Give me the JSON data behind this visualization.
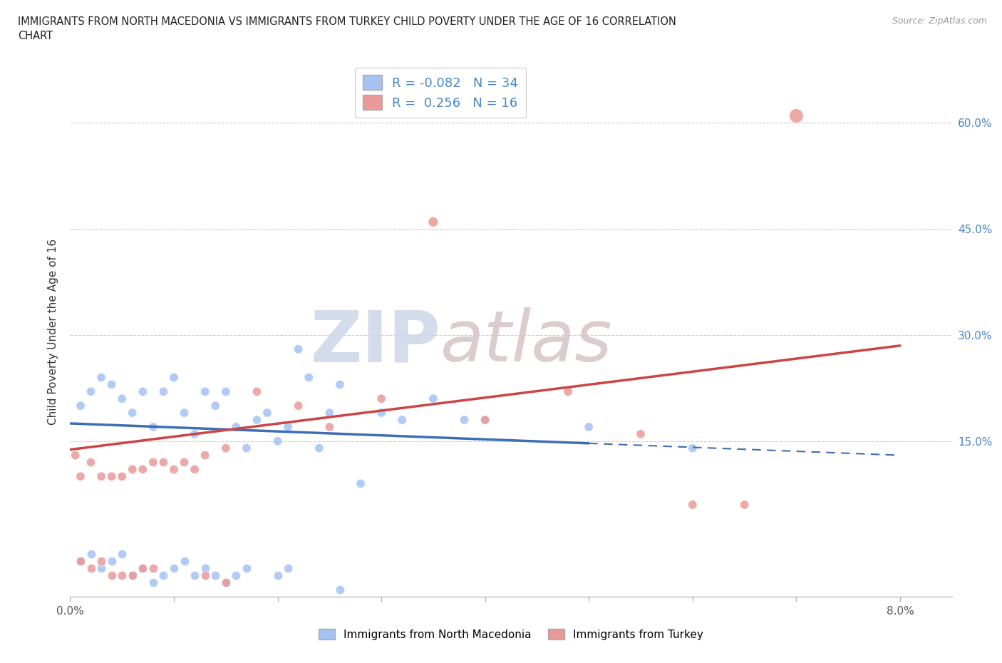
{
  "title": "IMMIGRANTS FROM NORTH MACEDONIA VS IMMIGRANTS FROM TURKEY CHILD POVERTY UNDER THE AGE OF 16 CORRELATION\nCHART",
  "source": "Source: ZipAtlas.com",
  "ylabel": "Child Poverty Under the Age of 16",
  "xlim": [
    0.0,
    0.085
  ],
  "ylim": [
    -0.07,
    0.68
  ],
  "x_ticks": [
    0.0,
    0.01,
    0.02,
    0.03,
    0.04,
    0.05,
    0.06,
    0.07,
    0.08
  ],
  "x_tick_labels_show": {
    "0.0": "0.0%",
    "0.08": "8.0%"
  },
  "y_tick_labels": [
    "15.0%",
    "30.0%",
    "45.0%",
    "60.0%"
  ],
  "y_tick_values": [
    0.15,
    0.3,
    0.45,
    0.6
  ],
  "gridline_values": [
    0.15,
    0.3,
    0.45,
    0.6
  ],
  "blue_color": "#a4c2f4",
  "pink_color": "#ea9999",
  "blue_line_color": "#3d6eb4",
  "pink_line_color": "#cc4444",
  "blue_line_solid_end": 0.05,
  "r_blue": -0.082,
  "n_blue": 34,
  "r_pink": 0.256,
  "n_pink": 16,
  "watermark_zip": "ZIP",
  "watermark_atlas": "atlas",
  "legend_label_blue": "Immigrants from North Macedonia",
  "legend_label_pink": "Immigrants from Turkey",
  "nm_x": [
    0.001,
    0.002,
    0.003,
    0.004,
    0.005,
    0.006,
    0.007,
    0.008,
    0.009,
    0.01,
    0.011,
    0.012,
    0.013,
    0.014,
    0.015,
    0.016,
    0.017,
    0.018,
    0.019,
    0.02,
    0.021,
    0.022,
    0.023,
    0.024,
    0.025,
    0.026,
    0.028,
    0.03,
    0.032,
    0.035,
    0.038,
    0.04,
    0.05,
    0.06
  ],
  "nm_y": [
    0.2,
    0.22,
    0.24,
    0.23,
    0.21,
    0.19,
    0.22,
    0.17,
    0.22,
    0.24,
    0.19,
    0.16,
    0.22,
    0.2,
    0.22,
    0.17,
    0.14,
    0.18,
    0.19,
    0.15,
    0.17,
    0.28,
    0.24,
    0.14,
    0.19,
    0.23,
    0.09,
    0.19,
    0.18,
    0.21,
    0.18,
    0.18,
    0.17,
    0.14
  ],
  "nm_sizes": [
    80,
    80,
    80,
    80,
    80,
    80,
    80,
    80,
    80,
    80,
    80,
    80,
    80,
    80,
    80,
    80,
    80,
    80,
    80,
    80,
    80,
    80,
    80,
    80,
    80,
    80,
    80,
    80,
    80,
    80,
    80,
    80,
    80,
    80
  ],
  "nm_below_x": [
    0.001,
    0.002,
    0.003,
    0.004,
    0.005,
    0.006,
    0.007,
    0.008,
    0.009,
    0.01,
    0.011,
    0.012,
    0.013,
    0.014,
    0.015,
    0.016,
    0.017,
    0.02,
    0.021,
    0.026
  ],
  "nm_below_y": [
    -0.02,
    -0.01,
    -0.03,
    -0.02,
    -0.01,
    -0.04,
    -0.03,
    -0.05,
    -0.04,
    -0.03,
    -0.02,
    -0.04,
    -0.03,
    -0.04,
    -0.05,
    -0.04,
    -0.03,
    -0.04,
    -0.03,
    -0.06
  ],
  "tk_x": [
    0.0005,
    0.001,
    0.002,
    0.003,
    0.004,
    0.005,
    0.006,
    0.007,
    0.008,
    0.009,
    0.01,
    0.011,
    0.012,
    0.013,
    0.015,
    0.018,
    0.022,
    0.025,
    0.03,
    0.035,
    0.04,
    0.048,
    0.055,
    0.06,
    0.065,
    0.07
  ],
  "tk_y": [
    0.13,
    0.1,
    0.12,
    0.1,
    0.1,
    0.1,
    0.11,
    0.11,
    0.12,
    0.12,
    0.11,
    0.12,
    0.11,
    0.13,
    0.14,
    0.22,
    0.2,
    0.17,
    0.21,
    0.46,
    0.18,
    0.22,
    0.16,
    0.06,
    0.06,
    0.61
  ],
  "tk_sizes": [
    80,
    80,
    80,
    80,
    80,
    80,
    80,
    80,
    80,
    80,
    80,
    80,
    80,
    80,
    80,
    80,
    80,
    80,
    80,
    100,
    80,
    80,
    80,
    80,
    80,
    200
  ],
  "tk_below_x": [
    0.001,
    0.002,
    0.003,
    0.004,
    0.005,
    0.006,
    0.007,
    0.008,
    0.013,
    0.015
  ],
  "tk_below_y": [
    -0.02,
    -0.03,
    -0.02,
    -0.04,
    -0.04,
    -0.04,
    -0.03,
    -0.03,
    -0.04,
    -0.05
  ],
  "blue_line_x0": 0.0,
  "blue_line_x1": 0.08,
  "blue_line_y0": 0.175,
  "blue_line_y1": 0.13,
  "pink_line_x0": 0.0,
  "pink_line_x1": 0.08,
  "pink_line_y0": 0.138,
  "pink_line_y1": 0.285
}
